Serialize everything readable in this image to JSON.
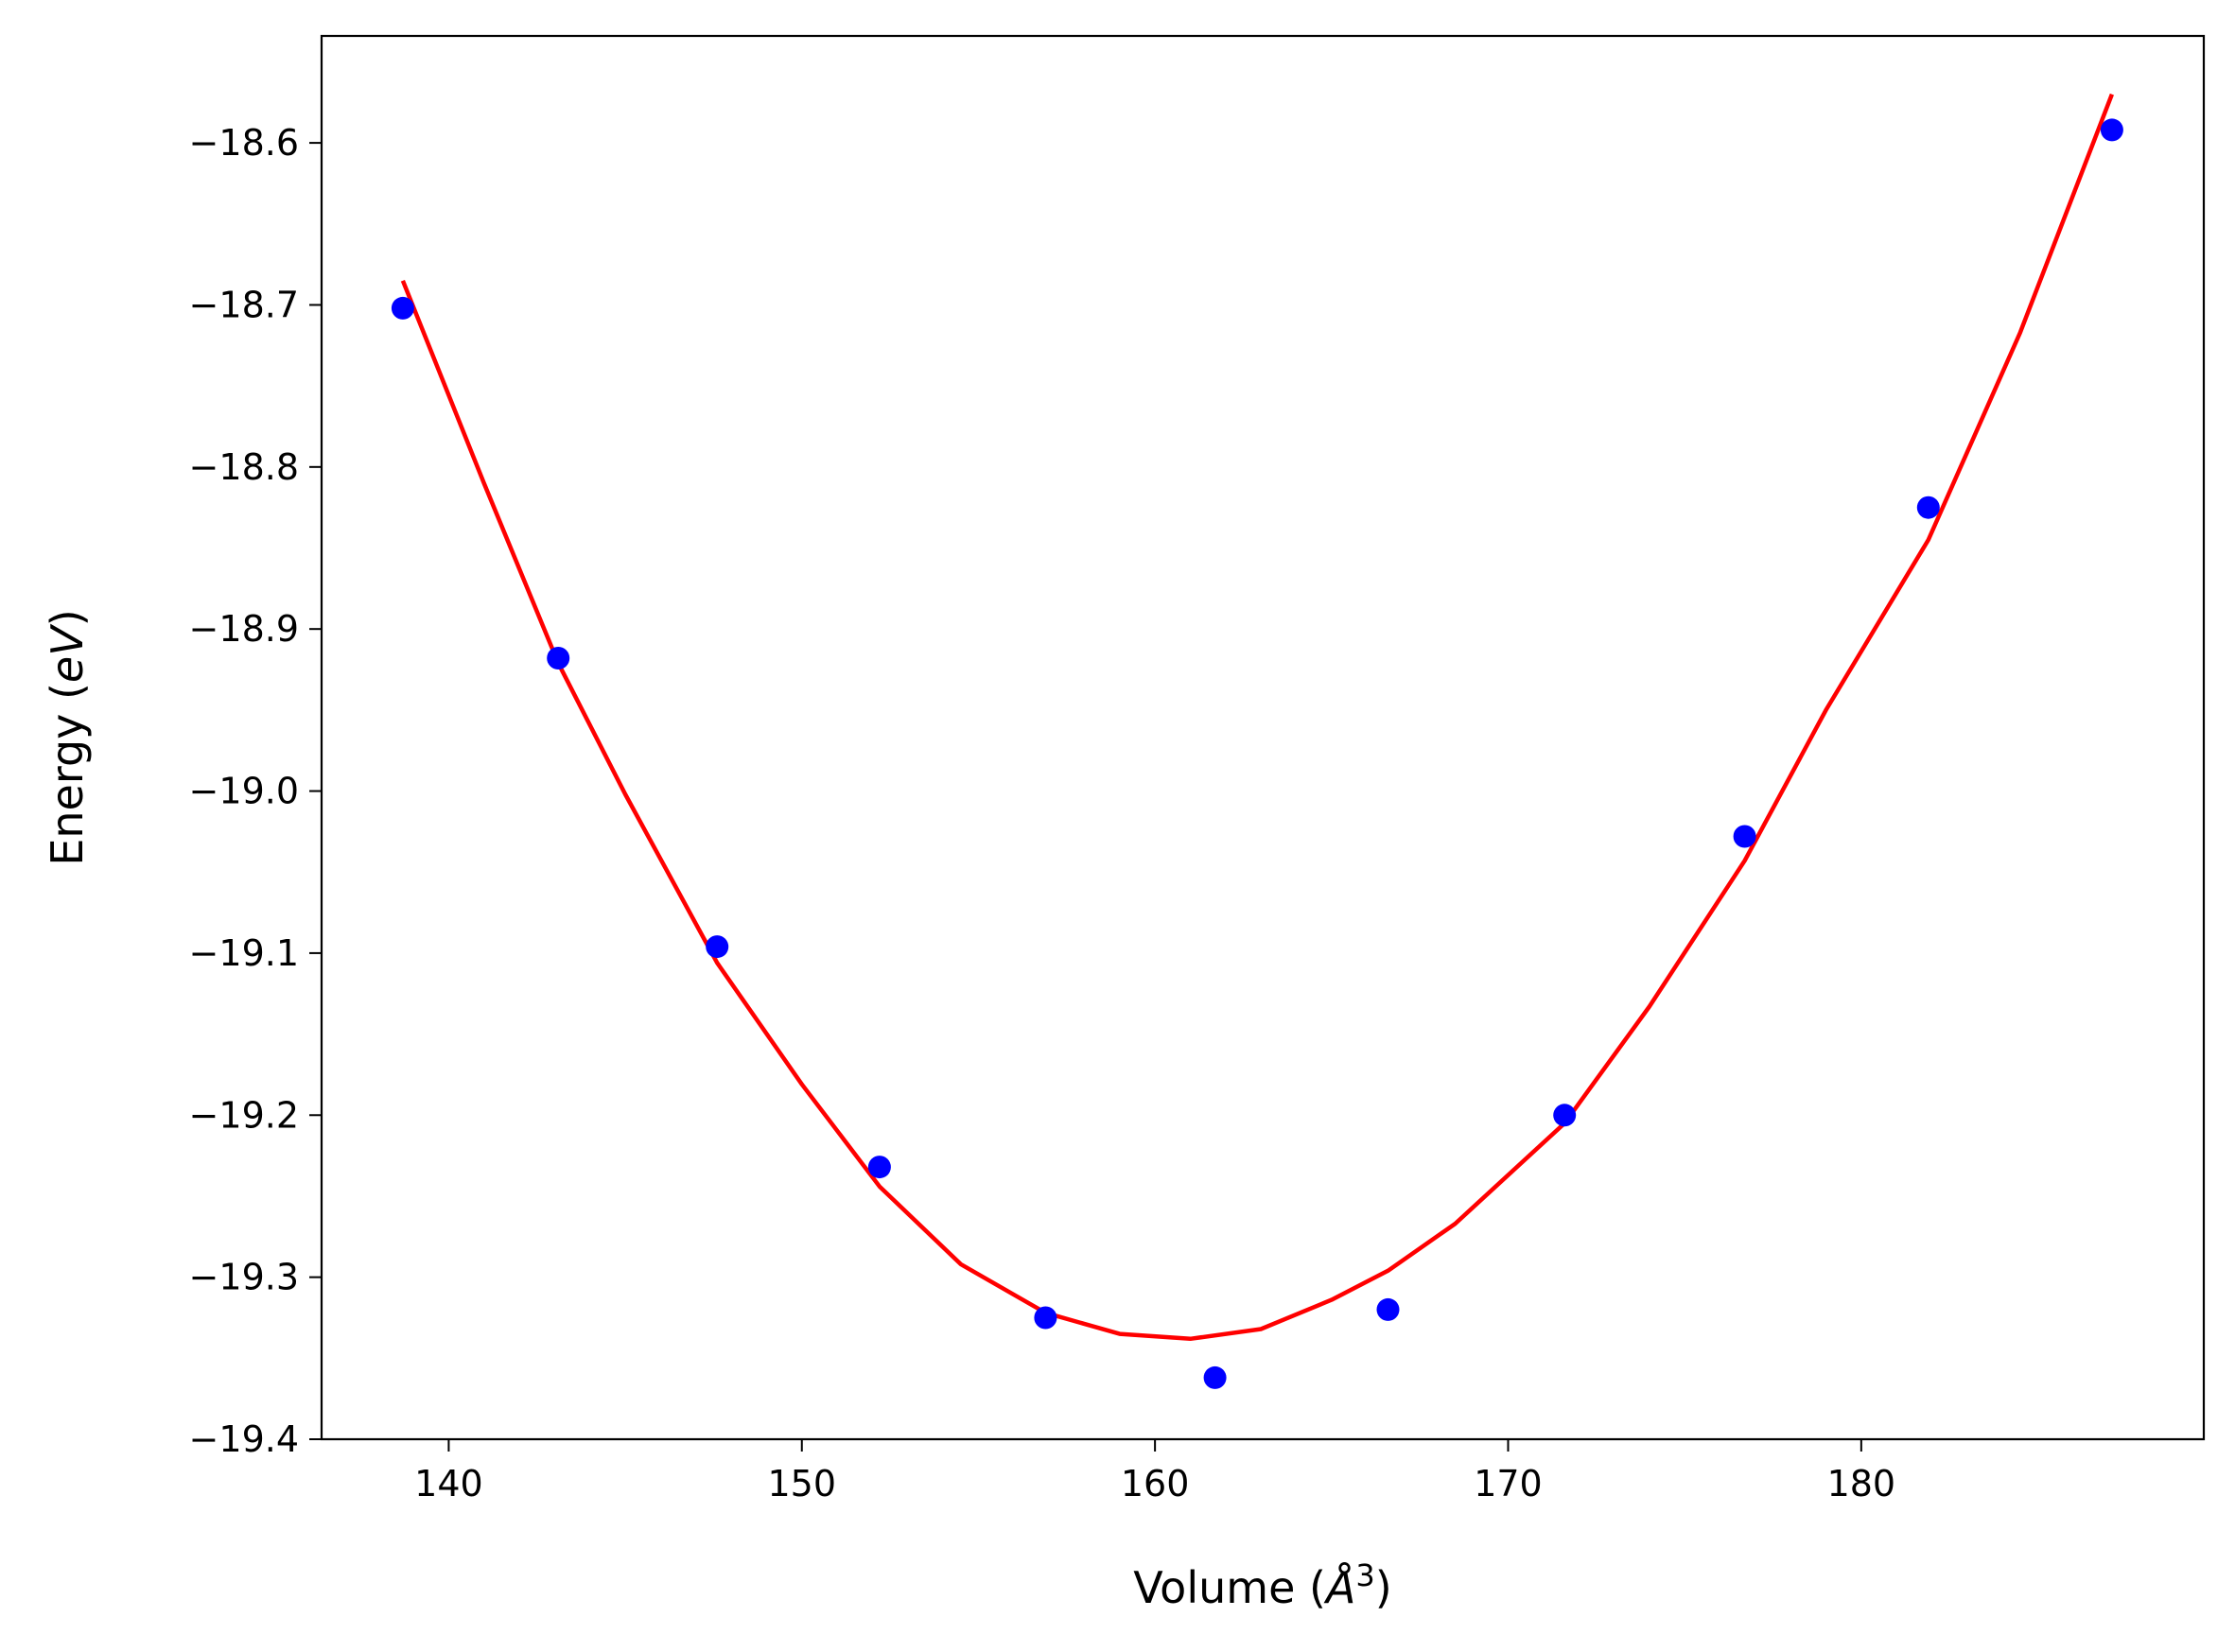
{
  "chart_data": {
    "type": "scatter",
    "xlabel": "Volume (",
    "xlabel_symbol": "Å",
    "xlabel_sup": "3",
    "xlabel_close": ")",
    "ylabel": "Energy (",
    "ylabel_unit": "eV",
    "ylabel_close": ")",
    "xlim": [
      136.4,
      189.7
    ],
    "ylim": [
      -19.4,
      -18.534
    ],
    "xticks": [
      140,
      150,
      160,
      170,
      180
    ],
    "xtick_labels": [
      "140",
      "150",
      "160",
      "170",
      "180"
    ],
    "yticks": [
      -19.4,
      -19.3,
      -19.2,
      -19.1,
      -19.0,
      -18.9,
      -18.8,
      -18.7,
      -18.6
    ],
    "ytick_labels": [
      "−19.4",
      "−19.3",
      "−19.2",
      "−19.1",
      "−19.0",
      "−18.9",
      "−18.8",
      "−18.7",
      "−18.6"
    ],
    "grid": false,
    "series": [
      {
        "kind": "points",
        "color": "#0000ff",
        "x": [
          138.7,
          143.1,
          147.6,
          152.2,
          156.9,
          161.7,
          166.6,
          171.6,
          176.7,
          181.9,
          187.1
        ],
        "y": [
          -18.702,
          -18.918,
          -19.096,
          -19.232,
          -19.325,
          -19.362,
          -19.32,
          -19.2,
          -19.028,
          -18.825,
          -18.592
        ]
      },
      {
        "kind": "fit",
        "color": "#ff0000",
        "x": [
          138.7,
          141.0,
          143.1,
          145.0,
          147.6,
          150.0,
          152.2,
          154.5,
          156.9,
          159.0,
          161.0,
          163.0,
          165.0,
          166.6,
          168.5,
          171.6,
          174.0,
          176.7,
          179.0,
          181.9,
          184.5,
          187.1
        ],
        "y": [
          -18.685,
          -18.81,
          -18.921,
          -19.002,
          -19.106,
          -19.181,
          -19.244,
          -19.292,
          -19.322,
          -19.335,
          -19.338,
          -19.332,
          -19.314,
          -19.296,
          -19.267,
          -19.205,
          -19.133,
          -19.043,
          -18.95,
          -18.845,
          -18.717,
          -18.57
        ]
      }
    ]
  }
}
